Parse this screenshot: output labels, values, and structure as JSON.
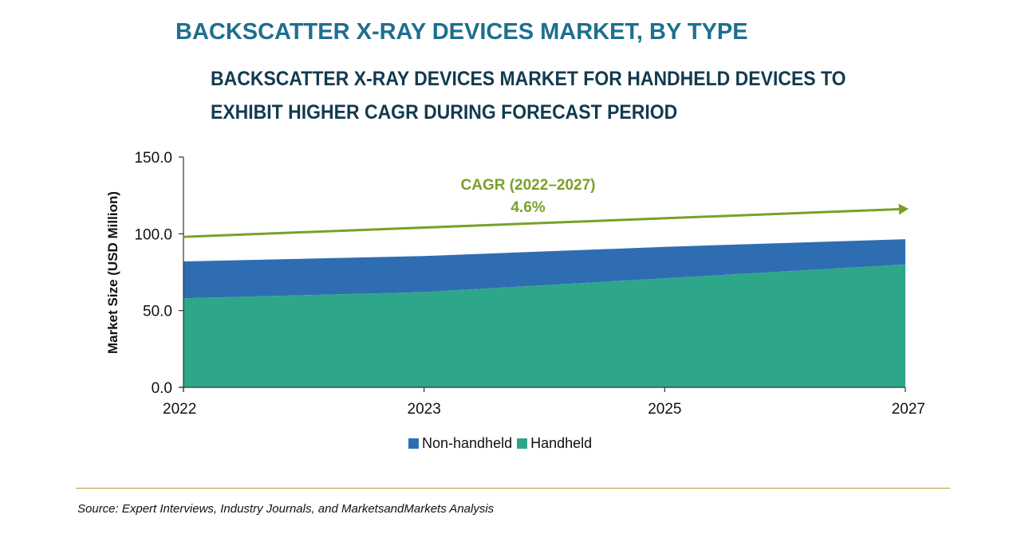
{
  "title": "BACKSCATTER X-RAY DEVICES MARKET, BY TYPE",
  "subtitle": "BACKSCATTER X-RAY DEVICES MARKET FOR HANDHELD DEVICES TO EXHIBIT HIGHER CAGR DURING FORECAST PERIOD",
  "source": "Source: Expert Interviews, Industry Journals, and MarketsandMarkets Analysis",
  "colors": {
    "title": "#1d6f8f",
    "subtitle": "#123a50",
    "non_handheld": "#2f6db3",
    "handheld": "#2ea68a",
    "cagr": "#7aa02a",
    "rule": "#b59a3a"
  },
  "chart_data": {
    "type": "area",
    "stacked": true,
    "categories": [
      "2022",
      "2023",
      "2025",
      "2027"
    ],
    "series": [
      {
        "name": "Handheld",
        "values": [
          58.0,
          62.0,
          71.0,
          80.0
        ]
      },
      {
        "name": "Non-handheld",
        "values": [
          24.0,
          23.5,
          20.5,
          16.5
        ]
      }
    ],
    "ylabel": "Market Size (USD Million)",
    "xlabel": "",
    "ylim": [
      0,
      150
    ],
    "yticks": [
      "0.0",
      "50.0",
      "100.0",
      "150.0"
    ],
    "legend": [
      "Non-handheld",
      "Handheld"
    ],
    "legend_position": "bottom",
    "annotation": {
      "label": "CAGR (2022–2027)",
      "value": "4.6%",
      "start": 98,
      "end": 116
    }
  }
}
